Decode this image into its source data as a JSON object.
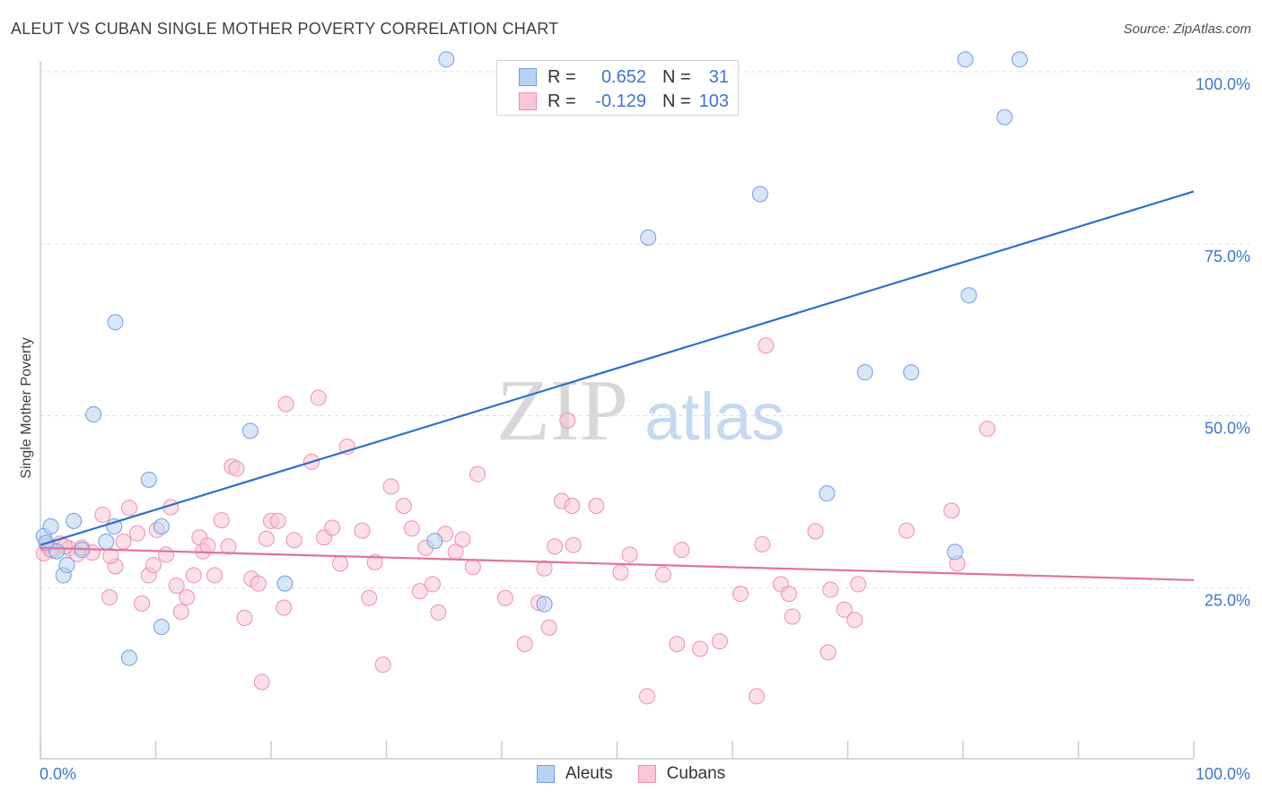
{
  "header": {
    "title": "ALEUT VS CUBAN SINGLE MOTHER POVERTY CORRELATION CHART",
    "source": "Source: ZipAtlas.com"
  },
  "watermark": {
    "zip": "ZIP",
    "atlas": "atlas"
  },
  "legend": {
    "r_label": "R =",
    "n_label": "N =",
    "rows": [
      {
        "name": "Aleuts",
        "r": "0.652",
        "n": "31",
        "fill": "#b9d2f3",
        "stroke": "#6f9ee0"
      },
      {
        "name": "Cubans",
        "r": "-0.129",
        "n": "103",
        "fill": "#f9c6d5",
        "stroke": "#ec90ad"
      }
    ]
  },
  "colors": {
    "aleut_line": "#2f6fce",
    "cuban_line": "#e2739a",
    "axis_text": "#3d77c9",
    "grid": "#dddddd"
  },
  "chart_data": {
    "type": "scatter",
    "ylabel": "Single Mother Poverty",
    "xlabel": "",
    "xlim": [
      0,
      100
    ],
    "ylim": [
      0,
      100
    ],
    "x_tick_labels": [
      "0.0%",
      "100.0%"
    ],
    "y_tick_labels": [
      "25.0%",
      "50.0%",
      "75.0%",
      "100.0%"
    ],
    "y_ticks": [
      25,
      50,
      75,
      100
    ],
    "grid": "horizontal dashed",
    "legend_position": "top-center",
    "series": [
      {
        "name": "Aleuts",
        "trend": {
          "x": [
            0,
            100
          ],
          "y": [
            31.2,
            82.6
          ]
        },
        "points": [
          [
            0.3,
            32.5
          ],
          [
            0.9,
            33.9
          ],
          [
            1.4,
            30.3
          ],
          [
            2.0,
            26.8
          ],
          [
            2.3,
            28.3
          ],
          [
            2.9,
            34.7
          ],
          [
            3.6,
            30.5
          ],
          [
            4.6,
            50.2
          ],
          [
            5.7,
            31.7
          ],
          [
            6.4,
            33.9
          ],
          [
            6.5,
            63.6
          ],
          [
            7.7,
            14.8
          ],
          [
            9.4,
            40.7
          ],
          [
            10.5,
            33.9
          ],
          [
            10.5,
            19.3
          ],
          [
            18.2,
            47.8
          ],
          [
            21.2,
            25.6
          ],
          [
            34.2,
            31.8
          ],
          [
            35.2,
            101.8
          ],
          [
            43.7,
            22.6
          ],
          [
            52.7,
            75.9
          ],
          [
            62.4,
            82.2
          ],
          [
            68.2,
            38.7
          ],
          [
            71.5,
            56.3
          ],
          [
            75.5,
            56.3
          ],
          [
            79.3,
            30.2
          ],
          [
            80.2,
            101.8
          ],
          [
            80.5,
            67.5
          ],
          [
            83.6,
            93.4
          ],
          [
            84.9,
            101.8
          ],
          [
            0.5,
            31.5
          ]
        ]
      },
      {
        "name": "Cubans",
        "trend": {
          "x": [
            0,
            100
          ],
          "y": [
            30.8,
            26.1
          ]
        },
        "points": [
          [
            0.3,
            30.0
          ],
          [
            0.6,
            31.1
          ],
          [
            1.1,
            30.4
          ],
          [
            1.7,
            31.4
          ],
          [
            2.5,
            30.7
          ],
          [
            3.2,
            29.9
          ],
          [
            3.6,
            30.8
          ],
          [
            4.5,
            30.1
          ],
          [
            5.4,
            35.6
          ],
          [
            6.0,
            23.6
          ],
          [
            6.5,
            28.1
          ],
          [
            7.2,
            31.7
          ],
          [
            7.7,
            36.6
          ],
          [
            8.4,
            32.9
          ],
          [
            8.8,
            22.7
          ],
          [
            9.4,
            26.8
          ],
          [
            9.8,
            28.3
          ],
          [
            10.1,
            33.4
          ],
          [
            10.9,
            29.8
          ],
          [
            11.3,
            36.7
          ],
          [
            11.8,
            25.3
          ],
          [
            12.2,
            21.5
          ],
          [
            12.7,
            23.6
          ],
          [
            13.3,
            26.8
          ],
          [
            13.8,
            32.3
          ],
          [
            14.1,
            30.3
          ],
          [
            14.5,
            31.1
          ],
          [
            15.1,
            26.8
          ],
          [
            15.7,
            34.8
          ],
          [
            16.3,
            31.0
          ],
          [
            16.6,
            42.6
          ],
          [
            17.0,
            42.3
          ],
          [
            17.7,
            20.6
          ],
          [
            18.3,
            26.3
          ],
          [
            18.9,
            25.6
          ],
          [
            19.2,
            11.3
          ],
          [
            19.6,
            32.1
          ],
          [
            20.0,
            34.7
          ],
          [
            20.6,
            34.7
          ],
          [
            21.1,
            22.1
          ],
          [
            21.3,
            51.7
          ],
          [
            22.0,
            31.9
          ],
          [
            23.5,
            43.3
          ],
          [
            24.1,
            52.6
          ],
          [
            24.6,
            32.3
          ],
          [
            25.3,
            33.7
          ],
          [
            26.0,
            28.5
          ],
          [
            26.6,
            45.5
          ],
          [
            27.9,
            33.3
          ],
          [
            28.5,
            23.5
          ],
          [
            29.0,
            28.7
          ],
          [
            29.7,
            13.8
          ],
          [
            30.4,
            39.7
          ],
          [
            31.5,
            36.9
          ],
          [
            32.2,
            33.6
          ],
          [
            32.9,
            24.5
          ],
          [
            33.4,
            30.8
          ],
          [
            34.0,
            25.5
          ],
          [
            34.5,
            21.4
          ],
          [
            35.1,
            32.8
          ],
          [
            36.0,
            30.2
          ],
          [
            36.6,
            32.0
          ],
          [
            37.5,
            28.0
          ],
          [
            37.9,
            41.5
          ],
          [
            40.3,
            23.5
          ],
          [
            42.0,
            16.8
          ],
          [
            43.2,
            22.8
          ],
          [
            43.7,
            27.8
          ],
          [
            44.1,
            19.2
          ],
          [
            44.6,
            31.0
          ],
          [
            45.2,
            37.6
          ],
          [
            45.7,
            49.3
          ],
          [
            46.1,
            36.9
          ],
          [
            46.2,
            31.2
          ],
          [
            48.2,
            36.9
          ],
          [
            50.3,
            27.2
          ],
          [
            51.1,
            29.8
          ],
          [
            52.6,
            9.2
          ],
          [
            54.0,
            26.9
          ],
          [
            55.2,
            16.8
          ],
          [
            55.6,
            30.5
          ],
          [
            57.2,
            16.1
          ],
          [
            58.9,
            17.2
          ],
          [
            60.7,
            24.1
          ],
          [
            62.1,
            9.2
          ],
          [
            62.6,
            31.3
          ],
          [
            62.9,
            60.2
          ],
          [
            64.2,
            25.5
          ],
          [
            64.9,
            24.1
          ],
          [
            65.2,
            20.8
          ],
          [
            67.2,
            33.2
          ],
          [
            68.3,
            15.6
          ],
          [
            68.5,
            24.7
          ],
          [
            69.7,
            21.8
          ],
          [
            70.6,
            20.3
          ],
          [
            70.9,
            25.5
          ],
          [
            75.1,
            33.3
          ],
          [
            79.0,
            36.2
          ],
          [
            79.5,
            28.5
          ],
          [
            82.1,
            48.1
          ],
          [
            0.9,
            30.5
          ],
          [
            2.1,
            31.0
          ],
          [
            6.1,
            29.6
          ]
        ]
      }
    ]
  }
}
